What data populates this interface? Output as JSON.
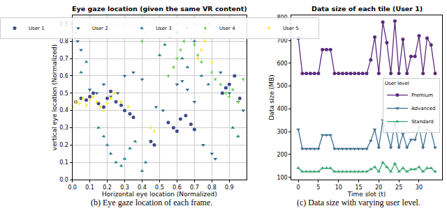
{
  "chart_data": [
    {
      "type": "scatter",
      "title": "Eye gaze location (given the same VR content)",
      "caption": "(b) Eye gaze location of each frame.",
      "x_label": "Horizontal eye location (Normalized)",
      "y_label": "vertical eye location (Normalized)",
      "xlim": [
        0,
        1
      ],
      "ylim": [
        0,
        0.95
      ],
      "xticks": [
        {
          "value": 0,
          "label": "0.0"
        },
        0.1,
        0.2,
        0.3,
        0.4,
        0.5,
        0.6,
        0.7,
        0.8,
        0.9
      ],
      "yticks": [
        {
          "value": 0,
          "label": "0.0"
        },
        0.1,
        0.2,
        0.3,
        0.4,
        0.5,
        0.6,
        0.7,
        0.8,
        0.9
      ],
      "grid": true,
      "legend": "upper center",
      "series": [
        {
          "name": "User 1",
          "color": "#3e4a89",
          "marker": "circle",
          "x": [
            0.02,
            0.05,
            0.08,
            0.1,
            0.12,
            0.15,
            0.18,
            0.2,
            0.22,
            0.25,
            0.28,
            0.3,
            0.33,
            0.35,
            0.55,
            0.58,
            0.6,
            0.62,
            0.65,
            0.68,
            0.7,
            0.86,
            0.88,
            0.9,
            0.93,
            0.96,
            0.45,
            0.47
          ],
          "y": [
            0.45,
            0.47,
            0.46,
            0.48,
            0.5,
            0.44,
            0.42,
            0.47,
            0.51,
            0.45,
            0.43,
            0.4,
            0.38,
            0.36,
            0.33,
            0.3,
            0.28,
            0.35,
            0.37,
            0.32,
            0.29,
            0.5,
            0.53,
            0.55,
            0.6,
            0.47,
            0.22,
            0.2
          ]
        },
        {
          "name": "User 2",
          "color": "#31688e",
          "marker": "triangle-down",
          "x": [
            0.02,
            0.03,
            0.05,
            0.1,
            0.14,
            0.18,
            0.22,
            0.26,
            0.3,
            0.35,
            0.4,
            0.48,
            0.52,
            0.6,
            0.63,
            0.66,
            0.7,
            0.75,
            0.8,
            0.82,
            0.85,
            0.9,
            0.95,
            0.98
          ],
          "y": [
            0.85,
            0.8,
            0.75,
            0.52,
            0.5,
            0.55,
            0.48,
            0.5,
            0.6,
            0.62,
            0.58,
            0.42,
            0.4,
            0.55,
            0.57,
            0.52,
            0.45,
            0.2,
            0.15,
            0.12,
            0.62,
            0.5,
            0.45,
            0.4
          ]
        },
        {
          "name": "User 3",
          "color": "#26828e",
          "marker": "triangle-up",
          "x": [
            0.15,
            0.18,
            0.2,
            0.22,
            0.25,
            0.28,
            0.3,
            0.33,
            0.36,
            0.4,
            0.42,
            0.5,
            0.53,
            0.56,
            0.6,
            0.63,
            0.66,
            0.7,
            0.74,
            0.78,
            0.05,
            0.08,
            0.92,
            0.95
          ],
          "y": [
            0.3,
            0.25,
            0.2,
            0.15,
            0.1,
            0.08,
            0.12,
            0.18,
            0.22,
            0.05,
            0.1,
            0.72,
            0.78,
            0.82,
            0.85,
            0.7,
            0.65,
            0.8,
            0.6,
            0.55,
            0.62,
            0.68,
            0.3,
            0.25
          ]
        },
        {
          "name": "User 4",
          "color": "#6ece58",
          "marker": "triangle-left",
          "x": [
            0.55,
            0.58,
            0.6,
            0.62,
            0.64,
            0.66,
            0.68,
            0.7,
            0.72,
            0.74,
            0.76,
            0.78,
            0.8,
            0.82,
            0.85,
            0.88,
            0.9,
            0.92,
            0.95,
            0.98,
            0.4,
            0.42
          ],
          "y": [
            0.6,
            0.65,
            0.7,
            0.75,
            0.8,
            0.88,
            0.82,
            0.78,
            0.72,
            0.68,
            0.85,
            0.9,
            0.62,
            0.58,
            0.55,
            0.5,
            0.48,
            0.52,
            0.45,
            0.58,
            0.8,
            0.85
          ]
        },
        {
          "name": "User 5",
          "color": "#fde725",
          "marker": "triangle-right",
          "x": [
            0.0,
            0.02,
            0.04,
            0.06,
            0.08,
            0.1,
            0.12,
            0.14,
            0.16,
            0.18,
            0.2,
            0.22,
            0.24,
            0.28,
            0.32,
            0.45,
            0.47,
            0.72,
            0.74,
            0.76,
            0.78,
            0.8
          ],
          "y": [
            0.42,
            0.45,
            0.44,
            0.47,
            0.43,
            0.46,
            0.48,
            0.45,
            0.42,
            0.4,
            0.44,
            0.47,
            0.5,
            0.45,
            0.42,
            0.3,
            0.28,
            0.7,
            0.75,
            0.8,
            0.82,
            0.68
          ]
        }
      ]
    },
    {
      "type": "line",
      "title": "Data size of each tile (User 1)",
      "caption": "(c) Data size with varying user level.",
      "x_label": "Time slot (t)",
      "y_label": "Data size (MB)",
      "xlim": [
        -1.7,
        35.7
      ],
      "ylim": [
        90,
        810
      ],
      "xticks": [
        0,
        5,
        10,
        15,
        20,
        25,
        30
      ],
      "yticks": [
        100,
        200,
        300,
        400,
        500,
        600,
        700,
        800
      ],
      "grid": false,
      "legend": "center right",
      "legend_title": "User level",
      "x": [
        0,
        1,
        2,
        3,
        4,
        5,
        6,
        7,
        8,
        9,
        10,
        11,
        12,
        13,
        14,
        15,
        16,
        17,
        18,
        19,
        20,
        21,
        22,
        23,
        24,
        25,
        26,
        27,
        28,
        29,
        30,
        31,
        32,
        33,
        34
      ],
      "series": [
        {
          "name": "Premium",
          "color": "#5b2a7f",
          "marker": "circle",
          "values": [
            710,
            555,
            555,
            555,
            555,
            555,
            660,
            660,
            660,
            555,
            555,
            555,
            555,
            555,
            555,
            555,
            555,
            555,
            615,
            715,
            555,
            780,
            690,
            555,
            785,
            555,
            705,
            555,
            630,
            630,
            720,
            555,
            710,
            680,
            555
          ]
        },
        {
          "name": "Advanced",
          "color": "#3b6e8f",
          "marker": "triangle-down",
          "values": [
            310,
            225,
            225,
            225,
            225,
            225,
            285,
            285,
            285,
            225,
            225,
            225,
            225,
            225,
            225,
            225,
            225,
            225,
            260,
            310,
            230,
            350,
            300,
            230,
            340,
            230,
            290,
            230,
            265,
            265,
            320,
            230,
            310,
            300,
            230
          ]
        },
        {
          "name": "Standard",
          "color": "#3aa673",
          "marker": "triangle-up",
          "values": [
            140,
            125,
            125,
            125,
            125,
            125,
            140,
            140,
            140,
            125,
            125,
            125,
            125,
            125,
            125,
            125,
            125,
            125,
            135,
            145,
            125,
            165,
            145,
            125,
            160,
            125,
            140,
            125,
            135,
            135,
            145,
            125,
            140,
            140,
            125
          ]
        }
      ]
    }
  ]
}
